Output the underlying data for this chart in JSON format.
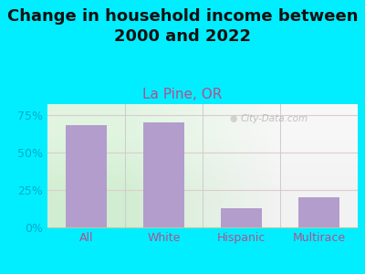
{
  "title": "Change in household income between\n2000 and 2022",
  "subtitle": "La Pine, OR",
  "categories": [
    "All",
    "White",
    "Hispanic",
    "Multirace"
  ],
  "values": [
    68,
    70,
    13,
    20
  ],
  "bar_color": "#b39dcc",
  "background_outer": "#00eeff",
  "background_chart_topleft": "#d8edd8",
  "background_chart_right": "#f0f0f0",
  "yticks": [
    0,
    25,
    50,
    75
  ],
  "ytick_labels": [
    "0%",
    "25%",
    "50%",
    "75%"
  ],
  "title_fontsize": 13,
  "subtitle_fontsize": 11,
  "subtitle_color": "#b05090",
  "tick_color": "#00aacc",
  "xtick_color": "#b05090",
  "watermark": "City-Data.com",
  "ylim": [
    0,
    82
  ],
  "grid_color": "#ddcccc",
  "divider_color": "#cccccc"
}
